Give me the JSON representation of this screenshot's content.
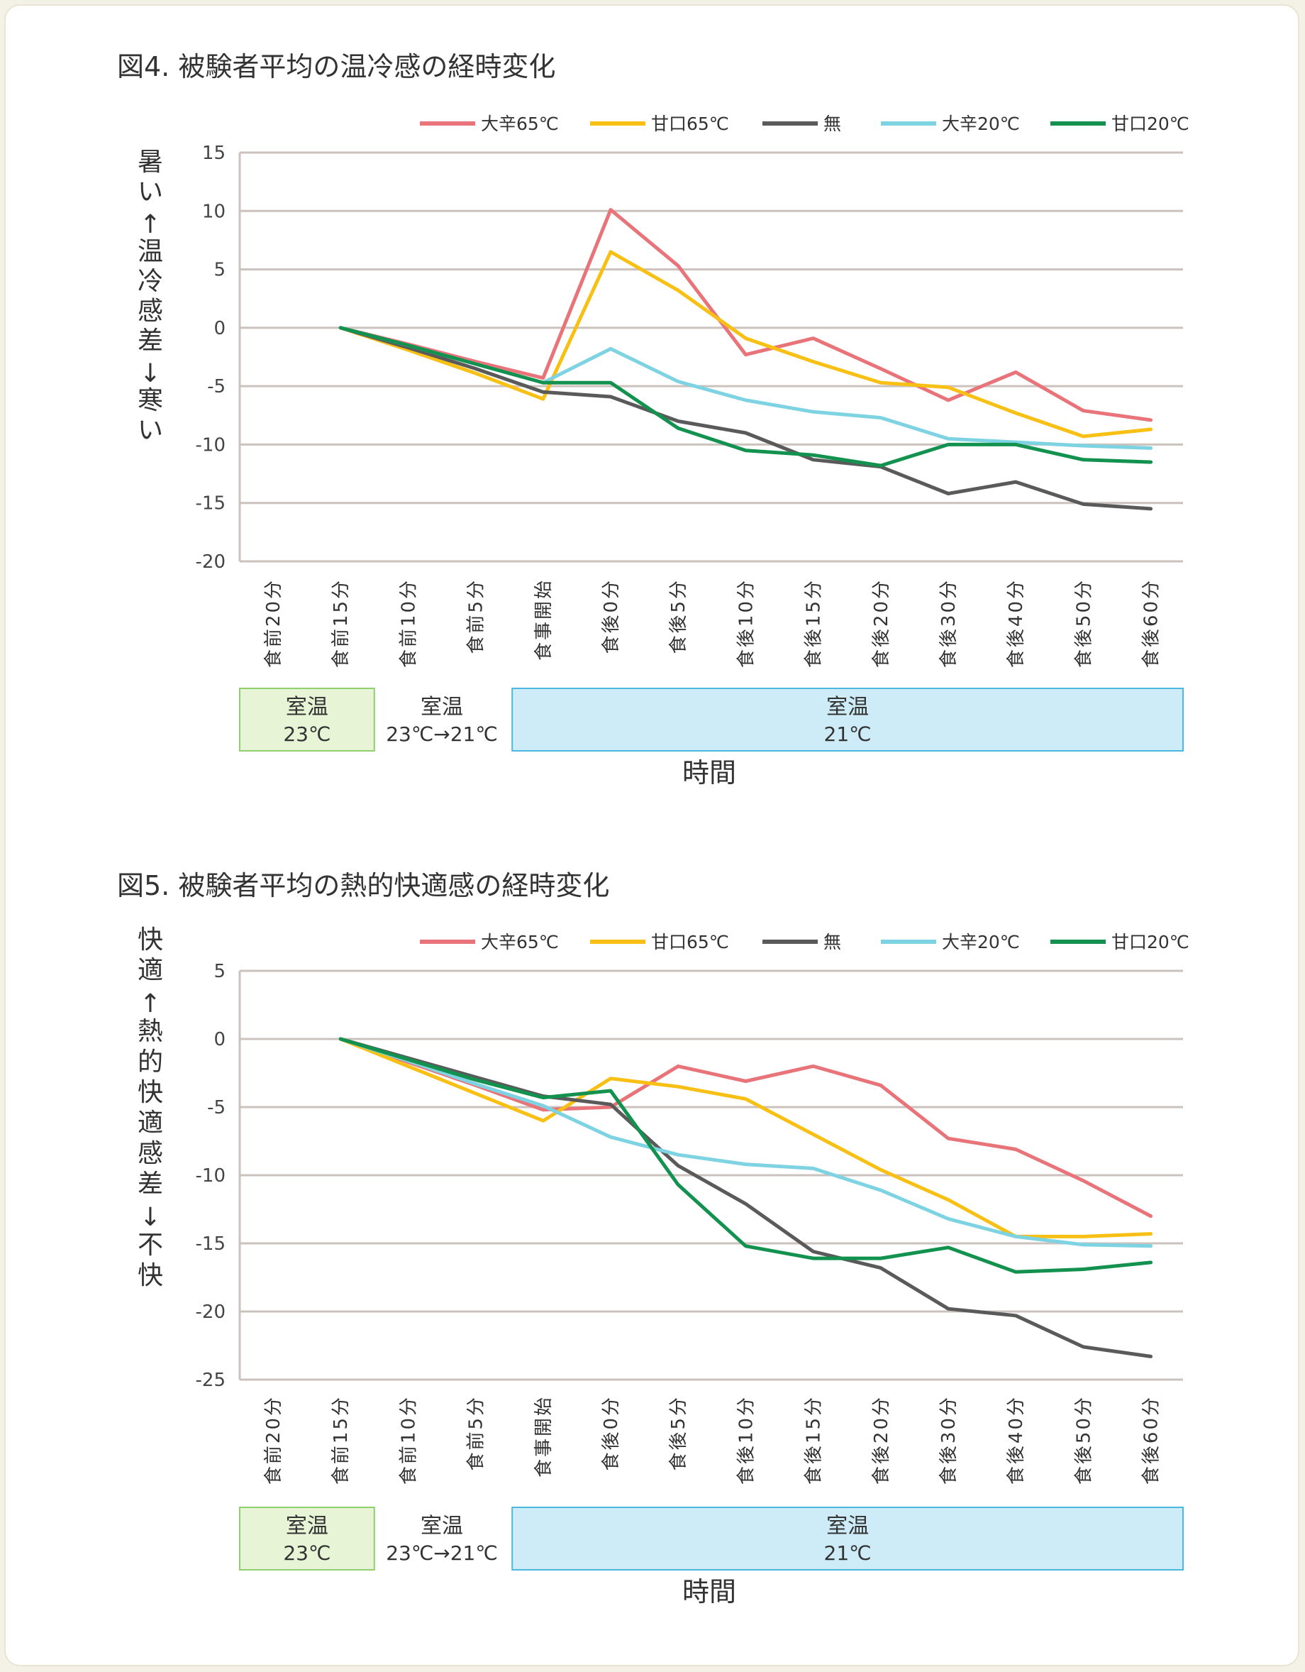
{
  "chart_data": [
    {
      "type": "line",
      "title": "図4. 被験者平均の温冷感の経時変化",
      "ylabel": "暑い↑温冷感差↓寒い",
      "xlabel": "時間",
      "ylim": [
        -20,
        15
      ],
      "yticks": [
        15,
        10,
        5,
        0,
        -5,
        -10,
        -15,
        -20
      ],
      "grid": true,
      "legend_position": "top",
      "categories": [
        "食前20分",
        "食前15分",
        "食前10分",
        "食前5分",
        "食事開始",
        "食後0分",
        "食後5分",
        "食後10分",
        "食後15分",
        "食後20分",
        "食後30分",
        "食後40分",
        "食後50分",
        "食後60分"
      ],
      "series": [
        {
          "name": "大辛65℃",
          "color": "#e8747a",
          "values": [
            null,
            0,
            -1.4,
            -2.9,
            -4.3,
            10.1,
            5.3,
            -2.3,
            -0.9,
            -3.5,
            -6.2,
            -3.8,
            -7.1,
            -7.9
          ]
        },
        {
          "name": "甘口65℃",
          "color": "#f8c014",
          "values": [
            null,
            0,
            -1.9,
            -3.9,
            -6.1,
            6.5,
            3.2,
            -0.9,
            -2.9,
            -4.7,
            -5.1,
            -7.3,
            -9.3,
            -8.7
          ]
        },
        {
          "name": "無",
          "color": "#5a5a5a",
          "values": [
            null,
            0,
            -1.7,
            -3.5,
            -5.5,
            -5.9,
            -8.0,
            -9.0,
            -11.3,
            -11.9,
            -14.2,
            -13.2,
            -15.1,
            -15.5
          ]
        },
        {
          "name": "大辛20℃",
          "color": "#7dd3e2",
          "values": [
            null,
            0,
            -1.5,
            -3.1,
            -4.7,
            -1.8,
            -4.6,
            -6.2,
            -7.2,
            -7.7,
            -9.5,
            -9.8,
            -10.1,
            -10.3
          ]
        },
        {
          "name": "甘口20℃",
          "color": "#12924e",
          "values": [
            null,
            0,
            -1.5,
            -3.1,
            -4.7,
            -4.7,
            -8.6,
            -10.5,
            -10.9,
            -11.8,
            -10.0,
            -10.0,
            -11.3,
            -11.5
          ]
        }
      ],
      "periods": [
        {
          "label": "室温",
          "temp": "23℃",
          "from": 0,
          "to": 1,
          "fill": "#e7f4d6",
          "stroke": "#8ecf6e"
        },
        {
          "label": "室温",
          "temp": "23℃→21℃",
          "from": 2,
          "to": 3,
          "fill": "none",
          "stroke": "none"
        },
        {
          "label": "室温",
          "temp": "21℃",
          "from": 4,
          "to": 13,
          "fill": "#cdecf7",
          "stroke": "#4cb8e0"
        }
      ]
    },
    {
      "type": "line",
      "title": "図5. 被験者平均の熱的快適感の経時変化",
      "ylabel": "快適↑熱的快適感差↓不快",
      "xlabel": "時間",
      "ylim": [
        -25,
        5
      ],
      "yticks": [
        5,
        0,
        -5,
        -10,
        -15,
        -20,
        -25
      ],
      "grid": true,
      "legend_position": "top",
      "categories": [
        "食前20分",
        "食前15分",
        "食前10分",
        "食前5分",
        "食事開始",
        "食後0分",
        "食後5分",
        "食後10分",
        "食後15分",
        "食後20分",
        "食後30分",
        "食後40分",
        "食後50分",
        "食後60分"
      ],
      "series": [
        {
          "name": "大辛65℃",
          "color": "#e8747a",
          "values": [
            null,
            0,
            -1.7,
            -3.4,
            -5.2,
            -5.0,
            -2.0,
            -3.1,
            -2.0,
            -3.4,
            -7.3,
            -8.1,
            -10.4,
            -13.0
          ]
        },
        {
          "name": "甘口65℃",
          "color": "#f8c014",
          "values": [
            null,
            0,
            -2.0,
            -4.0,
            -6.0,
            -2.9,
            -3.5,
            -4.4,
            -7.0,
            -9.6,
            -11.8,
            -14.5,
            -14.5,
            -14.3
          ]
        },
        {
          "name": "無",
          "color": "#5a5a5a",
          "values": [
            null,
            0,
            -1.4,
            -2.8,
            -4.2,
            -4.8,
            -9.3,
            -12.1,
            -15.6,
            -16.8,
            -19.8,
            -20.3,
            -22.6,
            -23.3
          ]
        },
        {
          "name": "大辛20℃",
          "color": "#7dd3e2",
          "values": [
            null,
            0,
            -1.6,
            -3.3,
            -4.9,
            -7.2,
            -8.5,
            -9.2,
            -9.5,
            -11.1,
            -13.2,
            -14.5,
            -15.1,
            -15.2
          ]
        },
        {
          "name": "甘口20℃",
          "color": "#12924e",
          "values": [
            null,
            0,
            -1.5,
            -3.0,
            -4.3,
            -3.8,
            -10.7,
            -15.2,
            -16.1,
            -16.1,
            -15.3,
            -17.1,
            -16.9,
            -16.4
          ]
        }
      ],
      "periods": [
        {
          "label": "室温",
          "temp": "23℃",
          "from": 0,
          "to": 1,
          "fill": "#e7f4d6",
          "stroke": "#8ecf6e"
        },
        {
          "label": "室温",
          "temp": "23℃→21℃",
          "from": 2,
          "to": 3,
          "fill": "none",
          "stroke": "none"
        },
        {
          "label": "室温",
          "temp": "21℃",
          "from": 4,
          "to": 13,
          "fill": "#cdecf7",
          "stroke": "#4cb8e0"
        }
      ]
    }
  ]
}
